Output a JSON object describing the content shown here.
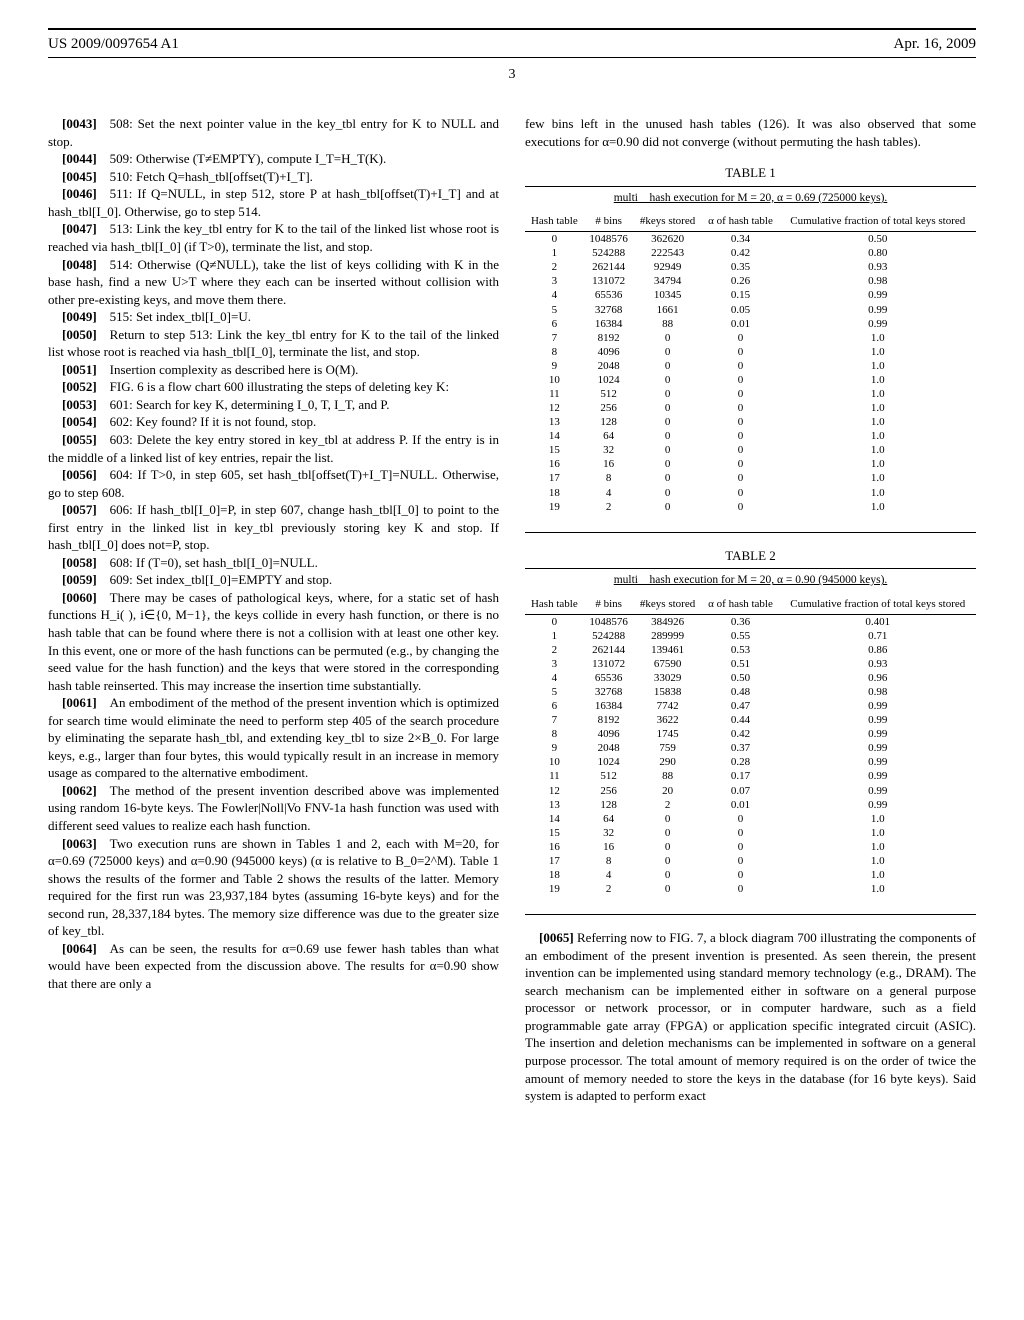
{
  "header": {
    "pub_number": "US 2009/0097654 A1",
    "date": "Apr. 16, 2009",
    "page_num": "3"
  },
  "left_col": {
    "paras": [
      {
        "num": "[0043]",
        "text": "508: Set the next pointer value in the key_tbl entry for K to NULL and stop."
      },
      {
        "num": "[0044]",
        "text": "509: Otherwise (T≠EMPTY), compute I_T=H_T(K)."
      },
      {
        "num": "[0045]",
        "text": "510: Fetch Q=hash_tbl[offset(T)+I_T]."
      },
      {
        "num": "[0046]",
        "text": "511: If Q=NULL, in step 512, store P at hash_tbl[offset(T)+I_T] and at hash_tbl[I_0]. Otherwise, go to step 514."
      },
      {
        "num": "[0047]",
        "text": "513: Link the key_tbl entry for K to the tail of the linked list whose root is reached via hash_tbl[I_0] (if T>0), terminate the list, and stop."
      },
      {
        "num": "[0048]",
        "text": "514: Otherwise (Q≠NULL), take the list of keys colliding with K in the base hash, find a new U>T where they each can be inserted without collision with other pre-existing keys, and move them there."
      },
      {
        "num": "[0049]",
        "text": "515: Set index_tbl[I_0]=U."
      },
      {
        "num": "[0050]",
        "text": "Return to step 513: Link the key_tbl entry for K to the tail of the linked list whose root is reached via hash_tbl[I_0], terminate the list, and stop."
      },
      {
        "num": "[0051]",
        "text": "Insertion complexity as described here is O(M)."
      },
      {
        "num": "[0052]",
        "text": "FIG. 6 is a flow chart 600 illustrating the steps of deleting key K:"
      },
      {
        "num": "[0053]",
        "text": "601: Search for key K, determining I_0, T, I_T, and P."
      },
      {
        "num": "[0054]",
        "text": "602: Key found? If it is not found, stop."
      },
      {
        "num": "[0055]",
        "text": "603: Delete the key entry stored in key_tbl at address P. If the entry is in the middle of a linked list of key entries, repair the list."
      },
      {
        "num": "[0056]",
        "text": "604: If T>0, in step 605, set hash_tbl[offset(T)+I_T]=NULL. Otherwise, go to step 608."
      },
      {
        "num": "[0057]",
        "text": "606: If hash_tbl[I_0]=P, in step 607, change hash_tbl[I_0] to point to the first entry in the linked list in key_tbl previously storing key K and stop. If hash_tbl[I_0] does not=P, stop."
      },
      {
        "num": "[0058]",
        "text": "608: If (T=0), set hash_tbl[I_0]=NULL."
      },
      {
        "num": "[0059]",
        "text": "609: Set index_tbl[I_0]=EMPTY and stop."
      },
      {
        "num": "[0060]",
        "text": "There may be cases of pathological keys, where, for a static set of hash functions H_i( ), i∈{0, M−1}, the keys collide in every hash function, or there is no hash table that can be found where there is not a collision with at least one other key. In this event, one or more of the hash functions can be permuted (e.g., by changing the seed value for the hash function) and the keys that were stored in the corresponding hash table reinserted. This may increase the insertion time substantially."
      },
      {
        "num": "[0061]",
        "text": "An embodiment of the method of the present invention which is optimized for search time would eliminate the need to perform step 405 of the search procedure by eliminating the separate hash_tbl, and extending key_tbl to size 2×B_0. For large keys, e.g., larger than four bytes, this would typically result in an increase in memory usage as compared to the alternative embodiment."
      },
      {
        "num": "[0062]",
        "text": "The method of the present invention described above was implemented using random 16-byte keys. The Fowler|Noll|Vo FNV-1a hash function was used with different seed values to realize each hash function."
      },
      {
        "num": "[0063]",
        "text": "Two execution runs are shown in Tables 1 and 2, each with M=20, for α=0.69 (725000 keys) and α=0.90 (945000 keys) (α is relative to B_0=2^M). Table 1 shows the results of the former and Table 2 shows the results of the latter. Memory required for the first run was 23,937,184 bytes (assuming 16-byte keys) and for the second run, 28,337,184 bytes. The memory size difference was due to the greater size of key_tbl."
      },
      {
        "num": "[0064]",
        "text": "As can be seen, the results for α=0.69 use fewer hash tables than what would have been expected from the discussion above. The results for α=0.90 show that there are only a"
      }
    ]
  },
  "right_col": {
    "intro": "few bins left in the unused hash tables (126). It was also observed that some executions for α=0.90 did not converge (without permuting the hash tables).",
    "table1": {
      "caption": "TABLE 1",
      "sub": "multi__hash execution for M = 20, α = 0.69 (725000 keys).",
      "headers": [
        "Hash table",
        "# bins",
        "#keys stored",
        "α of hash table",
        "Cumulative fraction of total keys stored"
      ],
      "rows": [
        [
          "0",
          "1048576",
          "362620",
          "0.34",
          "0.50"
        ],
        [
          "1",
          "524288",
          "222543",
          "0.42",
          "0.80"
        ],
        [
          "2",
          "262144",
          "92949",
          "0.35",
          "0.93"
        ],
        [
          "3",
          "131072",
          "34794",
          "0.26",
          "0.98"
        ],
        [
          "4",
          "65536",
          "10345",
          "0.15",
          "0.99"
        ],
        [
          "5",
          "32768",
          "1661",
          "0.05",
          "0.99"
        ],
        [
          "6",
          "16384",
          "88",
          "0.01",
          "0.99"
        ],
        [
          "7",
          "8192",
          "0",
          "0",
          "1.0"
        ],
        [
          "8",
          "4096",
          "0",
          "0",
          "1.0"
        ],
        [
          "9",
          "2048",
          "0",
          "0",
          "1.0"
        ],
        [
          "10",
          "1024",
          "0",
          "0",
          "1.0"
        ],
        [
          "11",
          "512",
          "0",
          "0",
          "1.0"
        ],
        [
          "12",
          "256",
          "0",
          "0",
          "1.0"
        ],
        [
          "13",
          "128",
          "0",
          "0",
          "1.0"
        ],
        [
          "14",
          "64",
          "0",
          "0",
          "1.0"
        ],
        [
          "15",
          "32",
          "0",
          "0",
          "1.0"
        ],
        [
          "16",
          "16",
          "0",
          "0",
          "1.0"
        ],
        [
          "17",
          "8",
          "0",
          "0",
          "1.0"
        ],
        [
          "18",
          "4",
          "0",
          "0",
          "1.0"
        ],
        [
          "19",
          "2",
          "0",
          "0",
          "1.0"
        ]
      ]
    },
    "table2": {
      "caption": "TABLE 2",
      "sub": "multi__hash execution for M = 20, α = 0.90 (945000 keys).",
      "headers": [
        "Hash table",
        "# bins",
        "#keys stored",
        "α of hash table",
        "Cumulative fraction of total keys stored"
      ],
      "rows": [
        [
          "0",
          "1048576",
          "384926",
          "0.36",
          "0.401"
        ],
        [
          "1",
          "524288",
          "289999",
          "0.55",
          "0.71"
        ],
        [
          "2",
          "262144",
          "139461",
          "0.53",
          "0.86"
        ],
        [
          "3",
          "131072",
          "67590",
          "0.51",
          "0.93"
        ],
        [
          "4",
          "65536",
          "33029",
          "0.50",
          "0.96"
        ],
        [
          "5",
          "32768",
          "15838",
          "0.48",
          "0.98"
        ],
        [
          "6",
          "16384",
          "7742",
          "0.47",
          "0.99"
        ],
        [
          "7",
          "8192",
          "3622",
          "0.44",
          "0.99"
        ],
        [
          "8",
          "4096",
          "1745",
          "0.42",
          "0.99"
        ],
        [
          "9",
          "2048",
          "759",
          "0.37",
          "0.99"
        ],
        [
          "10",
          "1024",
          "290",
          "0.28",
          "0.99"
        ],
        [
          "11",
          "512",
          "88",
          "0.17",
          "0.99"
        ],
        [
          "12",
          "256",
          "20",
          "0.07",
          "0.99"
        ],
        [
          "13",
          "128",
          "2",
          "0.01",
          "0.99"
        ],
        [
          "14",
          "64",
          "0",
          "0",
          "1.0"
        ],
        [
          "15",
          "32",
          "0",
          "0",
          "1.0"
        ],
        [
          "16",
          "16",
          "0",
          "0",
          "1.0"
        ],
        [
          "17",
          "8",
          "0",
          "0",
          "1.0"
        ],
        [
          "18",
          "4",
          "0",
          "0",
          "1.0"
        ],
        [
          "19",
          "2",
          "0",
          "0",
          "1.0"
        ]
      ]
    },
    "para65": {
      "num": "[0065]",
      "text": "Referring now to FIG. 7, a block diagram 700 illustrating the components of an embodiment of the present invention is presented. As seen therein, the present invention can be implemented using standard memory technology (e.g., DRAM). The search mechanism can be implemented either in software on a general purpose processor or network processor, or in computer hardware, such as a field programmable gate array (FPGA) or application specific integrated circuit (ASIC). The insertion and deletion mechanisms can be implemented in software on a general purpose processor. The total amount of memory required is on the order of twice the amount of memory needed to store the keys in the database (for 16 byte keys). Said system is adapted to perform exact"
    }
  }
}
